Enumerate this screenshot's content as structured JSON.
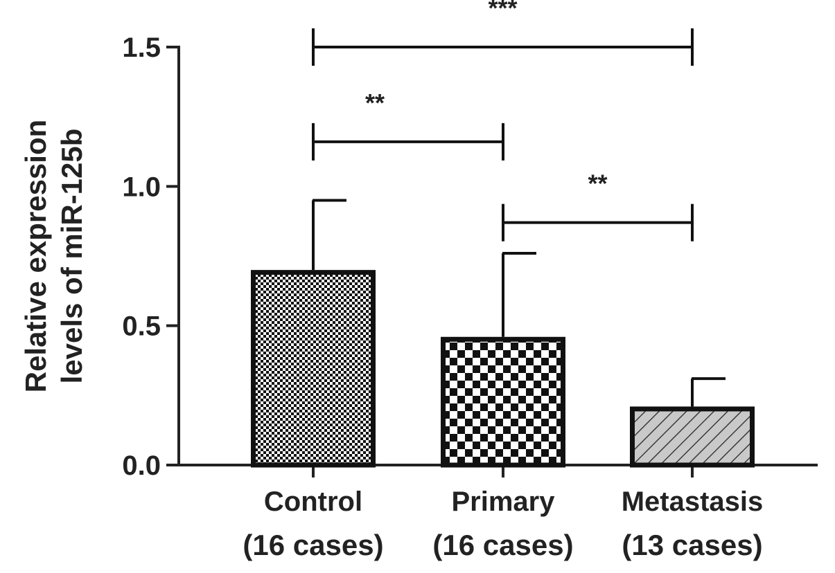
{
  "chart_data": {
    "type": "bar",
    "title": "",
    "xlabel": "",
    "ylabel_lines": [
      "Relative expression",
      "levels of miR-125b"
    ],
    "categories": [
      {
        "name": "Control",
        "sub": "(16 cases)"
      },
      {
        "name": "Primary",
        "sub": "(16 cases)"
      },
      {
        "name": "Metastasis",
        "sub": "(13 cases)"
      }
    ],
    "values": [
      0.7,
      0.46,
      0.21
    ],
    "errors": [
      0.25,
      0.3,
      0.1
    ],
    "patterns": [
      "fine-check",
      "coarse-check",
      "diagonal-hatch"
    ],
    "ylim": [
      0,
      1.5
    ],
    "yticks": [
      "0.0",
      "0.5",
      "1.0",
      "1.5"
    ],
    "ytick_values": [
      0,
      0.5,
      1.0,
      1.5
    ],
    "grid": false,
    "significance": [
      {
        "from": 0,
        "to": 2,
        "y": 1.5,
        "label": "***"
      },
      {
        "from": 0,
        "to": 1,
        "y": 1.16,
        "label": "**"
      },
      {
        "from": 1,
        "to": 2,
        "y": 0.87,
        "label": "**"
      }
    ],
    "colors": {
      "bar_edge": "#111111",
      "hatch_fill": "#c9c9c9",
      "axis": "#222222"
    }
  }
}
